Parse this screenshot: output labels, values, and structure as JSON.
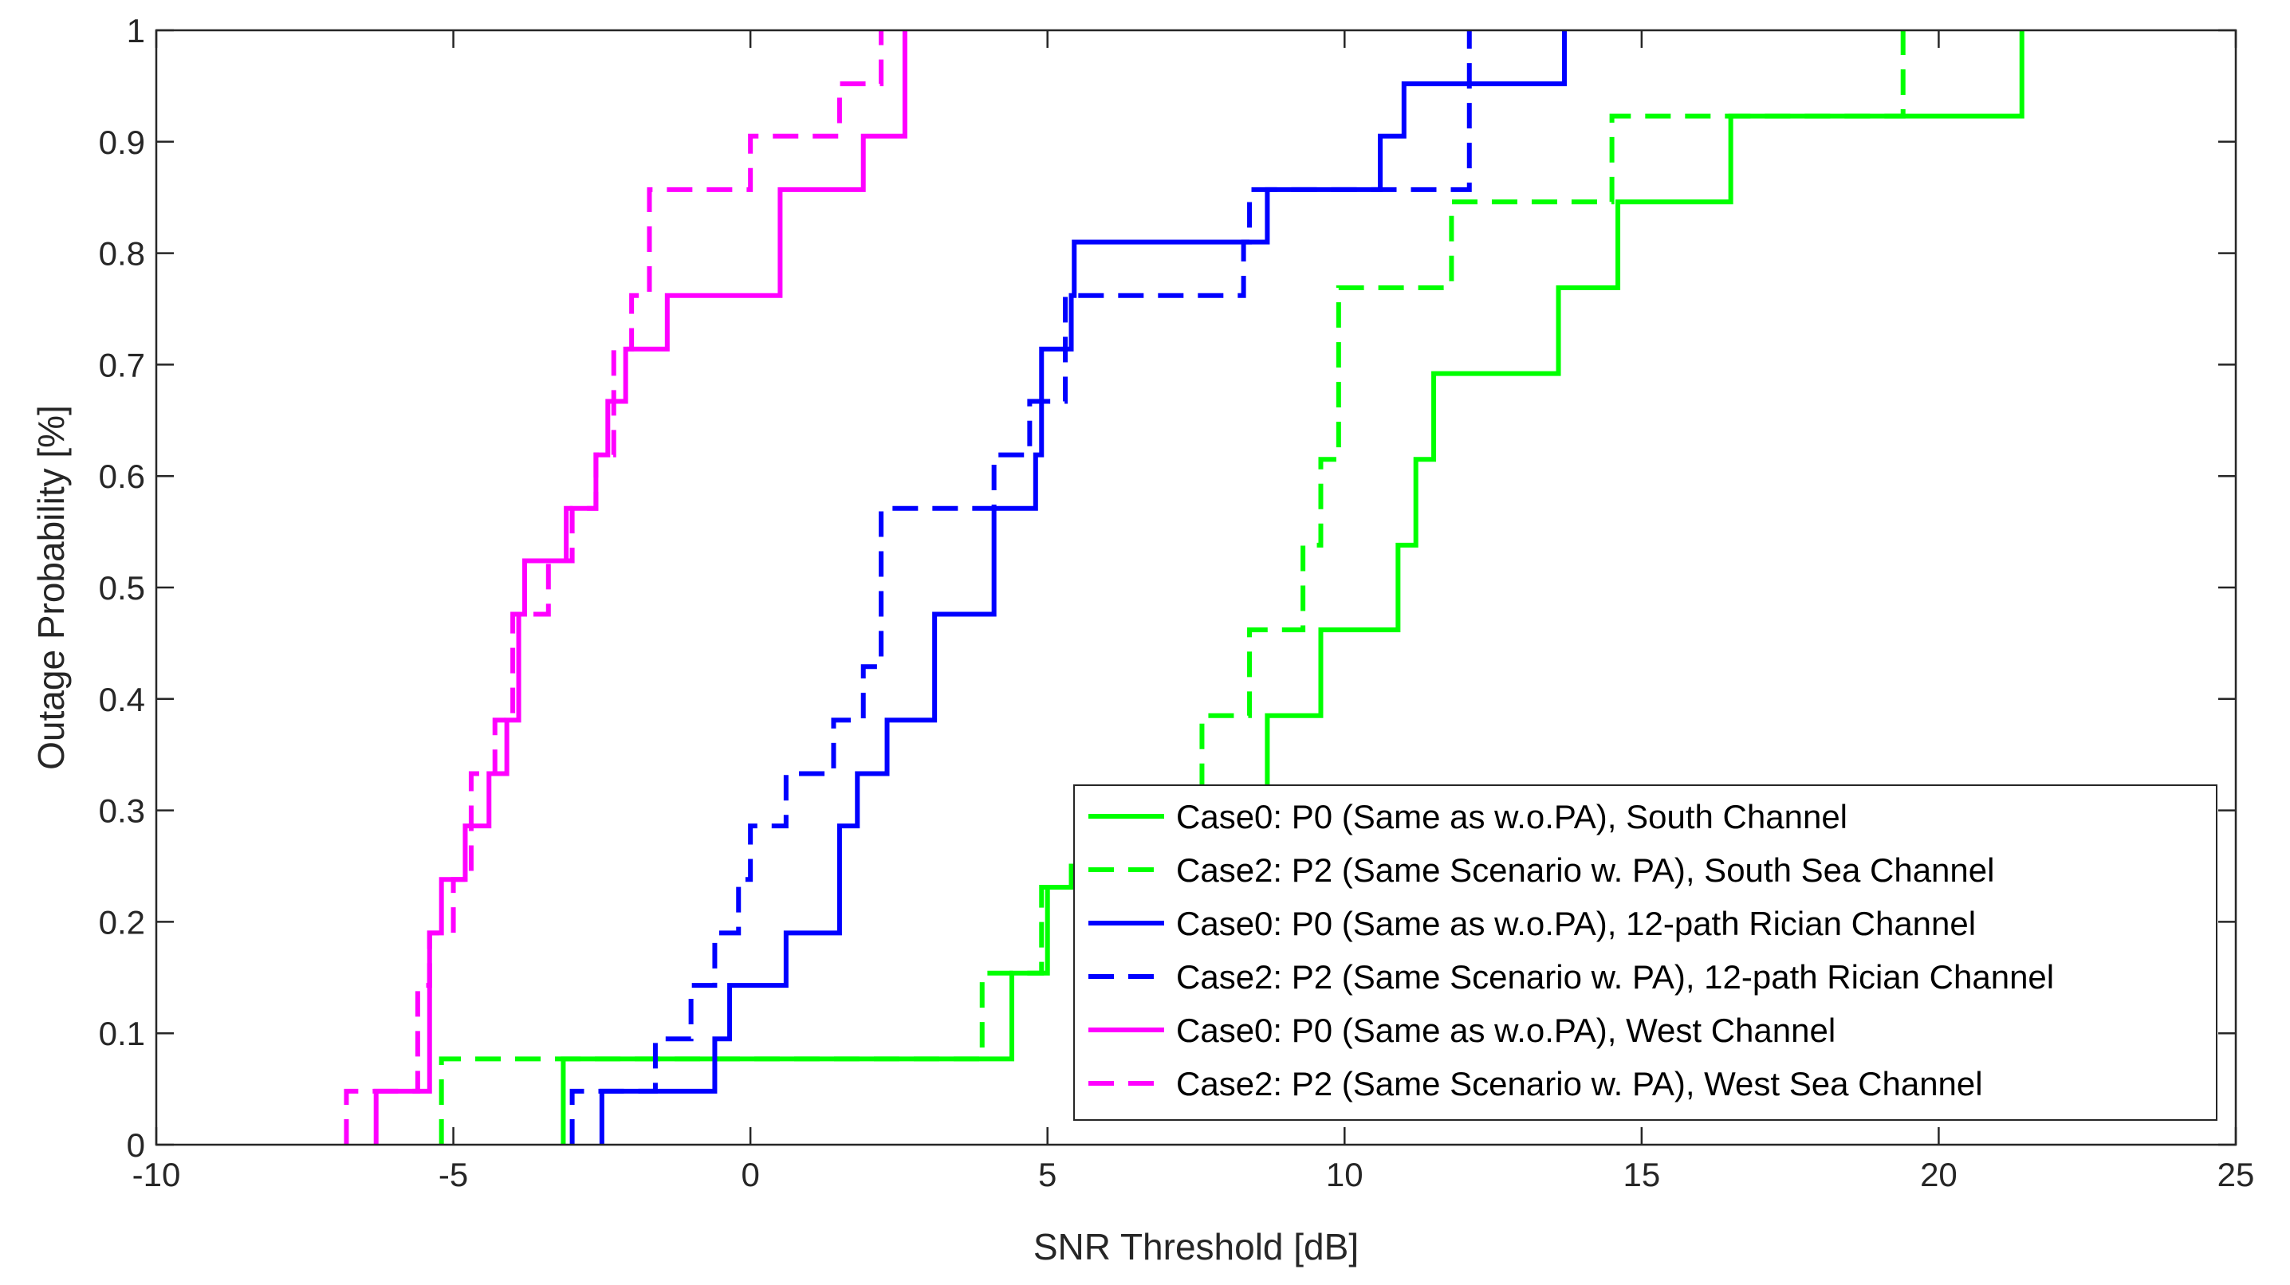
{
  "chart_data": {
    "type": "line",
    "step": true,
    "title": "",
    "xlabel": "SNR Threshold [dB]",
    "ylabel": "Outage Probability [%]",
    "xlim": [
      -10,
      25
    ],
    "ylim": [
      0,
      1
    ],
    "xticks": [
      "-10",
      "-5",
      "0",
      "5",
      "10",
      "15",
      "20",
      "25"
    ],
    "yticks": [
      "0",
      "0.1",
      "0.2",
      "0.3",
      "0.4",
      "0.5",
      "0.6",
      "0.7",
      "0.8",
      "0.9",
      "1"
    ],
    "grid": false,
    "legend_position": "bottom-right",
    "series": [
      {
        "name": "Case0: P0 (Same as w.o.PA), South Channel",
        "color": "#00ff00",
        "dash": "solid",
        "x": [
          -3.15,
          4.4,
          5.0,
          5.4,
          6.4,
          7.8,
          8.7,
          9.6,
          10.9,
          11.2,
          11.5,
          13.6,
          14.6,
          16.5,
          21.4
        ],
        "y": [
          0.077,
          0.154,
          0.231,
          0.25,
          0.3,
          0.31,
          0.385,
          0.462,
          0.538,
          0.615,
          0.692,
          0.769,
          0.846,
          0.923,
          1.0
        ]
      },
      {
        "name": "Case2: P2 (Same Scenario w. PA), South Sea Channel",
        "color": "#00ff00",
        "dash": "dashed",
        "x": [
          -5.2,
          3.9,
          4.9,
          6.7,
          7.6,
          8.4,
          9.3,
          9.6,
          9.9,
          11.6,
          11.8,
          14.5,
          19.4
        ],
        "y": [
          0.077,
          0.154,
          0.231,
          0.308,
          0.385,
          0.462,
          0.538,
          0.615,
          0.769,
          0.769,
          0.846,
          0.923,
          1.0
        ]
      },
      {
        "name": "Case0: P0 (Same as w.o.PA), 12-path Rician Channel",
        "color": "#0000ff",
        "dash": "solid",
        "x": [
          -2.5,
          -0.6,
          -0.35,
          0.6,
          1.5,
          1.8,
          2.3,
          3.1,
          4.1,
          4.8,
          4.9,
          5.4,
          5.45,
          8.7,
          10.6,
          11.0,
          13.7
        ],
        "y": [
          0.048,
          0.095,
          0.143,
          0.19,
          0.286,
          0.333,
          0.381,
          0.476,
          0.571,
          0.619,
          0.714,
          0.762,
          0.81,
          0.857,
          0.905,
          0.952,
          1.0
        ]
      },
      {
        "name": "Case2: P2 (Same Scenario w. PA), 12-path Rician Channel",
        "color": "#0000ff",
        "dash": "dashed",
        "x": [
          -3.0,
          -1.6,
          -1.0,
          -0.6,
          -0.2,
          0.0,
          0.6,
          1.4,
          1.9,
          2.2,
          4.1,
          4.7,
          5.3,
          8.3,
          8.4,
          12.1
        ],
        "y": [
          0.048,
          0.095,
          0.143,
          0.19,
          0.238,
          0.286,
          0.333,
          0.381,
          0.429,
          0.571,
          0.619,
          0.667,
          0.762,
          0.81,
          0.857,
          1.0
        ]
      },
      {
        "name": "Case0: P0 (Same as w.o.PA), West Channel",
        "color": "#ff00ff",
        "dash": "solid",
        "x": [
          -6.3,
          -5.4,
          -5.2,
          -4.8,
          -4.4,
          -4.1,
          -3.9,
          -3.8,
          -3.1,
          -2.6,
          -2.4,
          -2.1,
          -1.4,
          0.5,
          1.9,
          2.6
        ],
        "y": [
          0.048,
          0.19,
          0.238,
          0.286,
          0.333,
          0.381,
          0.476,
          0.524,
          0.571,
          0.619,
          0.667,
          0.714,
          0.762,
          0.857,
          0.905,
          1.0
        ]
      },
      {
        "name": "Case2: P2 (Same Scenario w. PA), West Sea Channel",
        "color": "#ff00ff",
        "dash": "dashed",
        "x": [
          -6.8,
          -5.6,
          -5.4,
          -5.0,
          -4.7,
          -4.3,
          -4.0,
          -3.4,
          -3.0,
          -2.6,
          -2.3,
          -2.0,
          -1.7,
          0.0,
          1.5,
          2.2
        ],
        "y": [
          0.048,
          0.143,
          0.19,
          0.238,
          0.333,
          0.381,
          0.476,
          0.524,
          0.571,
          0.619,
          0.714,
          0.762,
          0.857,
          0.905,
          0.952,
          1.0
        ]
      }
    ]
  }
}
